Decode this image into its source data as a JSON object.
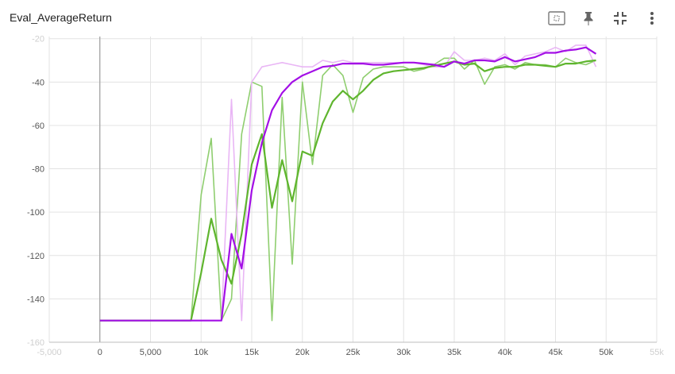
{
  "card": {
    "title": "Eval_AverageReturn"
  },
  "toolbar": {
    "icons": [
      "fit-domain-icon",
      "pin-icon",
      "collapse-icon",
      "more-vert-icon"
    ]
  },
  "chart_data": {
    "type": "line",
    "title": "Eval_AverageReturn",
    "xlabel": "",
    "ylabel": "",
    "xlim": [
      -5000,
      55000
    ],
    "ylim": [
      -160,
      -19
    ],
    "x_ticks": [
      {
        "v": -5000,
        "label": "-5,000",
        "faded": true
      },
      {
        "v": 0,
        "label": "0"
      },
      {
        "v": 5000,
        "label": "5,000"
      },
      {
        "v": 10000,
        "label": "10k"
      },
      {
        "v": 15000,
        "label": "15k"
      },
      {
        "v": 20000,
        "label": "20k"
      },
      {
        "v": 25000,
        "label": "25k"
      },
      {
        "v": 30000,
        "label": "30k"
      },
      {
        "v": 35000,
        "label": "35k"
      },
      {
        "v": 40000,
        "label": "40k"
      },
      {
        "v": 45000,
        "label": "45k"
      },
      {
        "v": 50000,
        "label": "50k"
      },
      {
        "v": 55000,
        "label": "55k",
        "faded": true
      }
    ],
    "y_ticks": [
      {
        "v": -20,
        "label": "-20",
        "faded": true
      },
      {
        "v": -40,
        "label": "-40"
      },
      {
        "v": -60,
        "label": "-60"
      },
      {
        "v": -80,
        "label": "-80"
      },
      {
        "v": -100,
        "label": "-100"
      },
      {
        "v": -120,
        "label": "-120"
      },
      {
        "v": -140,
        "label": "-140"
      },
      {
        "v": -160,
        "label": "-160",
        "faded": true
      }
    ],
    "grid": true,
    "series": [
      {
        "color": "#8fce6f",
        "smoothed_color": "#5fb52e",
        "raw": [
          [
            0,
            -150
          ],
          [
            1000,
            -150
          ],
          [
            2000,
            -150
          ],
          [
            3000,
            -150
          ],
          [
            4000,
            -150
          ],
          [
            5000,
            -150
          ],
          [
            6000,
            -150
          ],
          [
            7000,
            -150
          ],
          [
            8000,
            -150
          ],
          [
            9000,
            -150
          ],
          [
            10000,
            -92
          ],
          [
            11000,
            -66
          ],
          [
            12000,
            -150
          ],
          [
            13000,
            -140
          ],
          [
            14000,
            -64
          ],
          [
            15000,
            -40
          ],
          [
            16000,
            -42
          ],
          [
            17000,
            -150
          ],
          [
            18000,
            -47
          ],
          [
            19000,
            -124
          ],
          [
            20000,
            -40
          ],
          [
            21000,
            -78
          ],
          [
            22000,
            -37
          ],
          [
            23000,
            -32
          ],
          [
            24000,
            -37
          ],
          [
            25000,
            -54
          ],
          [
            26000,
            -38
          ],
          [
            27000,
            -34
          ],
          [
            28000,
            -33
          ],
          [
            29000,
            -33
          ],
          [
            30000,
            -33
          ],
          [
            31000,
            -35
          ],
          [
            32000,
            -34
          ],
          [
            33000,
            -32
          ],
          [
            34000,
            -29
          ],
          [
            35000,
            -29
          ],
          [
            36000,
            -34
          ],
          [
            37000,
            -30
          ],
          [
            38000,
            -41
          ],
          [
            39000,
            -33
          ],
          [
            40000,
            -32
          ],
          [
            41000,
            -34
          ],
          [
            42000,
            -31
          ],
          [
            43000,
            -32
          ],
          [
            44000,
            -32
          ],
          [
            45000,
            -33
          ],
          [
            46000,
            -29
          ],
          [
            47000,
            -31
          ],
          [
            48000,
            -32
          ],
          [
            49000,
            -30
          ]
        ],
        "smoothed": [
          [
            0,
            -150
          ],
          [
            1000,
            -150
          ],
          [
            2000,
            -150
          ],
          [
            3000,
            -150
          ],
          [
            4000,
            -150
          ],
          [
            5000,
            -150
          ],
          [
            6000,
            -150
          ],
          [
            7000,
            -150
          ],
          [
            8000,
            -150
          ],
          [
            9000,
            -150
          ],
          [
            10000,
            -128
          ],
          [
            11000,
            -103
          ],
          [
            12000,
            -122
          ],
          [
            13000,
            -133
          ],
          [
            14000,
            -110
          ],
          [
            15000,
            -78
          ],
          [
            16000,
            -64
          ],
          [
            17000,
            -98
          ],
          [
            18000,
            -76
          ],
          [
            19000,
            -95
          ],
          [
            20000,
            -72
          ],
          [
            21000,
            -74
          ],
          [
            22000,
            -59
          ],
          [
            23000,
            -49
          ],
          [
            24000,
            -44
          ],
          [
            25000,
            -48
          ],
          [
            26000,
            -44
          ],
          [
            27000,
            -39
          ],
          [
            28000,
            -36
          ],
          [
            29000,
            -35
          ],
          [
            30000,
            -34.5
          ],
          [
            31000,
            -34
          ],
          [
            32000,
            -33.5
          ],
          [
            33000,
            -32.5
          ],
          [
            34000,
            -31.5
          ],
          [
            35000,
            -30.5
          ],
          [
            36000,
            -32
          ],
          [
            37000,
            -31.5
          ],
          [
            38000,
            -35
          ],
          [
            39000,
            -33.5
          ],
          [
            40000,
            -33
          ],
          [
            41000,
            -33
          ],
          [
            42000,
            -32
          ],
          [
            43000,
            -32
          ],
          [
            44000,
            -32.5
          ],
          [
            45000,
            -33
          ],
          [
            46000,
            -31.5
          ],
          [
            47000,
            -31.5
          ],
          [
            48000,
            -30.5
          ],
          [
            49000,
            -30
          ]
        ]
      },
      {
        "color": "#e9b6f5",
        "smoothed_color": "#a30fe6",
        "raw": [
          [
            0,
            -150
          ],
          [
            1000,
            -150
          ],
          [
            2000,
            -150
          ],
          [
            3000,
            -150
          ],
          [
            4000,
            -150
          ],
          [
            5000,
            -150
          ],
          [
            6000,
            -150
          ],
          [
            7000,
            -150
          ],
          [
            8000,
            -150
          ],
          [
            9000,
            -150
          ],
          [
            10000,
            -150
          ],
          [
            11000,
            -150
          ],
          [
            12000,
            -150
          ],
          [
            13000,
            -48
          ],
          [
            14000,
            -150
          ],
          [
            15000,
            -40
          ],
          [
            16000,
            -33
          ],
          [
            17000,
            -32
          ],
          [
            18000,
            -31
          ],
          [
            19000,
            -32
          ],
          [
            20000,
            -33
          ],
          [
            21000,
            -33
          ],
          [
            22000,
            -30
          ],
          [
            23000,
            -31
          ],
          [
            24000,
            -30
          ],
          [
            25000,
            -31
          ],
          [
            26000,
            -31
          ],
          [
            27000,
            -31
          ],
          [
            28000,
            -31
          ],
          [
            29000,
            -31
          ],
          [
            30000,
            -31
          ],
          [
            31000,
            -31
          ],
          [
            32000,
            -32
          ],
          [
            33000,
            -33
          ],
          [
            34000,
            -33
          ],
          [
            35000,
            -26
          ],
          [
            36000,
            -30
          ],
          [
            37000,
            -30
          ],
          [
            38000,
            -29
          ],
          [
            39000,
            -30
          ],
          [
            40000,
            -27
          ],
          [
            41000,
            -32
          ],
          [
            42000,
            -28
          ],
          [
            43000,
            -27
          ],
          [
            44000,
            -26
          ],
          [
            45000,
            -24
          ],
          [
            46000,
            -26
          ],
          [
            47000,
            -23
          ],
          [
            48000,
            -23
          ],
          [
            49000,
            -33
          ]
        ],
        "smoothed": [
          [
            0,
            -150
          ],
          [
            1000,
            -150
          ],
          [
            2000,
            -150
          ],
          [
            3000,
            -150
          ],
          [
            4000,
            -150
          ],
          [
            5000,
            -150
          ],
          [
            6000,
            -150
          ],
          [
            7000,
            -150
          ],
          [
            8000,
            -150
          ],
          [
            9000,
            -150
          ],
          [
            10000,
            -150
          ],
          [
            11000,
            -150
          ],
          [
            12000,
            -150
          ],
          [
            13000,
            -110
          ],
          [
            14000,
            -126
          ],
          [
            15000,
            -90
          ],
          [
            16000,
            -68
          ],
          [
            17000,
            -53
          ],
          [
            18000,
            -45
          ],
          [
            19000,
            -40
          ],
          [
            20000,
            -37
          ],
          [
            21000,
            -35
          ],
          [
            22000,
            -33
          ],
          [
            23000,
            -32.5
          ],
          [
            24000,
            -31.5
          ],
          [
            25000,
            -31.5
          ],
          [
            26000,
            -31.5
          ],
          [
            27000,
            -32
          ],
          [
            28000,
            -32
          ],
          [
            29000,
            -31.5
          ],
          [
            30000,
            -31
          ],
          [
            31000,
            -31
          ],
          [
            32000,
            -31.5
          ],
          [
            33000,
            -32
          ],
          [
            34000,
            -33
          ],
          [
            35000,
            -30.5
          ],
          [
            36000,
            -31.5
          ],
          [
            37000,
            -30
          ],
          [
            38000,
            -30
          ],
          [
            39000,
            -30.5
          ],
          [
            40000,
            -28.5
          ],
          [
            41000,
            -30.5
          ],
          [
            42000,
            -29.5
          ],
          [
            43000,
            -28.5
          ],
          [
            44000,
            -26.5
          ],
          [
            45000,
            -26.5
          ],
          [
            46000,
            -25.5
          ],
          [
            47000,
            -25
          ],
          [
            48000,
            -24
          ],
          [
            49000,
            -27
          ]
        ]
      }
    ]
  }
}
